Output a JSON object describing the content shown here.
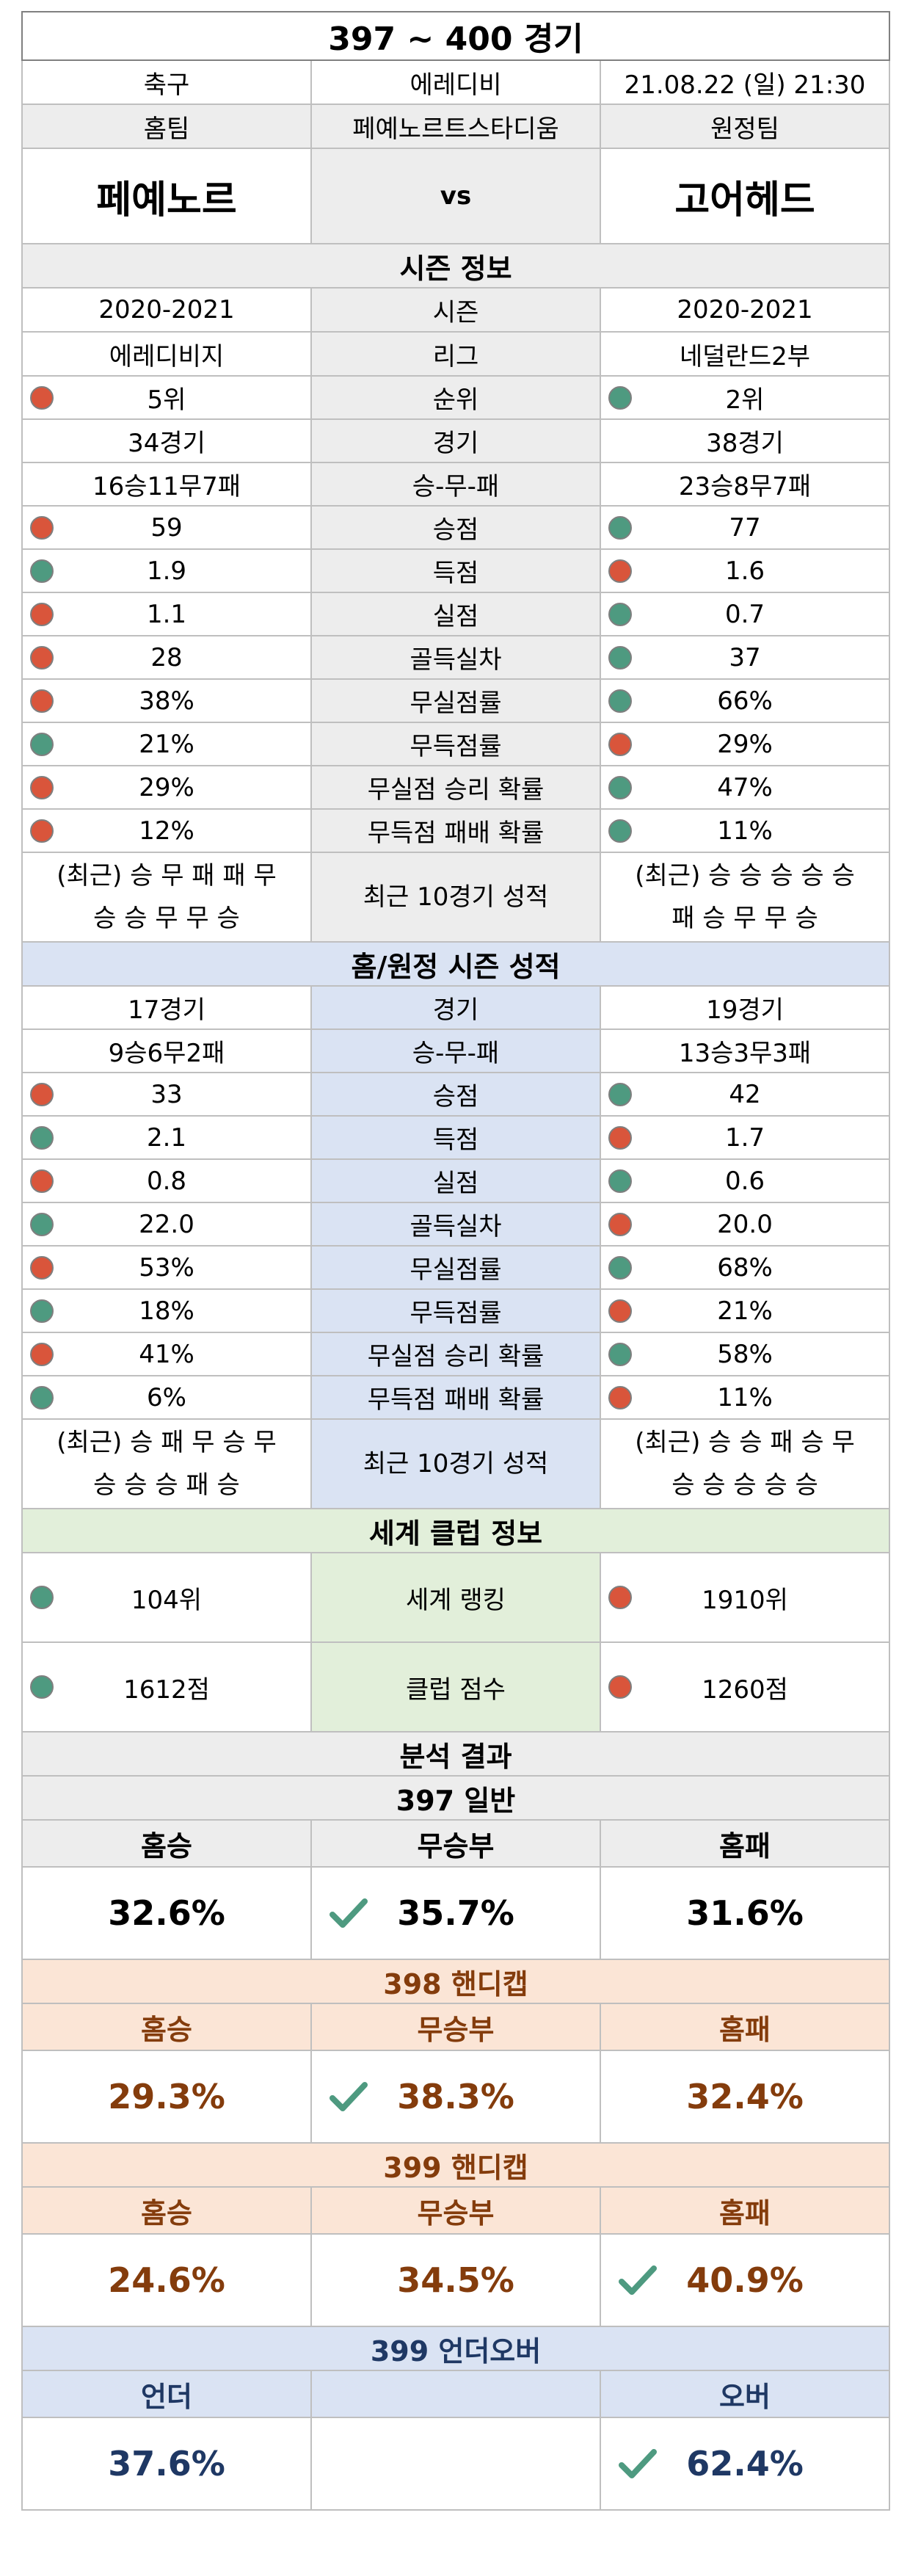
{
  "title": "397 ~ 400 경기",
  "sport": "축구",
  "league": "에레디비",
  "datetime": "21.08.22 (일) 21:30",
  "home_label": "홈팀",
  "stadium": "페예노르트스타디움",
  "away_label": "원정팀",
  "home_team": "페예노르",
  "vs": "vs",
  "away_team": "고어헤드",
  "colors": {
    "red": "#d9553b",
    "green": "#4e9a80",
    "check": "#4e9a80"
  },
  "season": {
    "header": "시즌 정보",
    "rows": [
      {
        "label": "시즌",
        "home": "2020-2021",
        "away": "2020-2021"
      },
      {
        "label": "리그",
        "home": "에레디비지",
        "away": "네덜란드2부"
      },
      {
        "label": "순위",
        "home": "5위",
        "away": "2위",
        "home_dot": "red",
        "away_dot": "green"
      },
      {
        "label": "경기",
        "home": "34경기",
        "away": "38경기"
      },
      {
        "label": "승-무-패",
        "home": "16승11무7패",
        "away": "23승8무7패"
      },
      {
        "label": "승점",
        "home": "59",
        "away": "77",
        "home_dot": "red",
        "away_dot": "green"
      },
      {
        "label": "득점",
        "home": "1.9",
        "away": "1.6",
        "home_dot": "green",
        "away_dot": "red"
      },
      {
        "label": "실점",
        "home": "1.1",
        "away": "0.7",
        "home_dot": "red",
        "away_dot": "green"
      },
      {
        "label": "골득실차",
        "home": "28",
        "away": "37",
        "home_dot": "red",
        "away_dot": "green"
      },
      {
        "label": "무실점률",
        "home": "38%",
        "away": "66%",
        "home_dot": "red",
        "away_dot": "green"
      },
      {
        "label": "무득점률",
        "home": "21%",
        "away": "29%",
        "home_dot": "green",
        "away_dot": "red"
      },
      {
        "label": "무실점 승리 확률",
        "home": "29%",
        "away": "47%",
        "home_dot": "red",
        "away_dot": "green"
      },
      {
        "label": "무득점 패배 확률",
        "home": "12%",
        "away": "11%",
        "home_dot": "red",
        "away_dot": "green"
      }
    ],
    "recent": {
      "label": "최근 10경기 성적",
      "home_l1": "(최근) 승 무 패 패 무",
      "home_l2": "승 승 무 무 승",
      "away_l1": "(최근) 승 승 승 승 승",
      "away_l2": "패 승 무 무 승"
    }
  },
  "homeaway": {
    "header": "홈/원정 시즌 성적",
    "rows": [
      {
        "label": "경기",
        "home": "17경기",
        "away": "19경기"
      },
      {
        "label": "승-무-패",
        "home": "9승6무2패",
        "away": "13승3무3패"
      },
      {
        "label": "승점",
        "home": "33",
        "away": "42",
        "home_dot": "red",
        "away_dot": "green"
      },
      {
        "label": "득점",
        "home": "2.1",
        "away": "1.7",
        "home_dot": "green",
        "away_dot": "red"
      },
      {
        "label": "실점",
        "home": "0.8",
        "away": "0.6",
        "home_dot": "red",
        "away_dot": "green"
      },
      {
        "label": "골득실차",
        "home": "22.0",
        "away": "20.0",
        "home_dot": "green",
        "away_dot": "red"
      },
      {
        "label": "무실점률",
        "home": "53%",
        "away": "68%",
        "home_dot": "red",
        "away_dot": "green"
      },
      {
        "label": "무득점률",
        "home": "18%",
        "away": "21%",
        "home_dot": "green",
        "away_dot": "red"
      },
      {
        "label": "무실점 승리 확률",
        "home": "41%",
        "away": "58%",
        "home_dot": "red",
        "away_dot": "green"
      },
      {
        "label": "무득점 패배 확률",
        "home": "6%",
        "away": "11%",
        "home_dot": "green",
        "away_dot": "red"
      }
    ],
    "recent": {
      "label": "최근 10경기 성적",
      "home_l1": "(최근) 승 패 무 승 무",
      "home_l2": "승 승 승 패 승",
      "away_l1": "(최근) 승 승 패 승 무",
      "away_l2": "승 승 승 승 승"
    }
  },
  "world": {
    "header": "세계 클럽 정보",
    "rows": [
      {
        "label": "세계 랭킹",
        "home": "104위",
        "away": "1910위",
        "home_dot": "green",
        "away_dot": "red"
      },
      {
        "label": "클럽 점수",
        "home": "1612점",
        "away": "1260점",
        "home_dot": "green",
        "away_dot": "red"
      }
    ]
  },
  "analysis": {
    "header": "분석 결과",
    "g397": {
      "title": "397 일반",
      "c1": "홈승",
      "c2": "무승부",
      "c3": "홈패",
      "v1": "32.6%",
      "v2": "35.7%",
      "v3": "31.6%",
      "check": 2
    },
    "g398": {
      "title": "398 핸디캡",
      "c1": "홈승",
      "c2": "무승부",
      "c3": "홈패",
      "v1": "29.3%",
      "v2": "38.3%",
      "v3": "32.4%",
      "check": 2
    },
    "g399h": {
      "title": "399 핸디캡",
      "c1": "홈승",
      "c2": "무승부",
      "c3": "홈패",
      "v1": "24.6%",
      "v2": "34.5%",
      "v3": "40.9%",
      "check": 3
    },
    "g399u": {
      "title": "399 언더오버",
      "c1": "언더",
      "c2": "",
      "c3": "오버",
      "v1": "37.6%",
      "v2": "",
      "v3": "62.4%",
      "check": 3
    }
  }
}
